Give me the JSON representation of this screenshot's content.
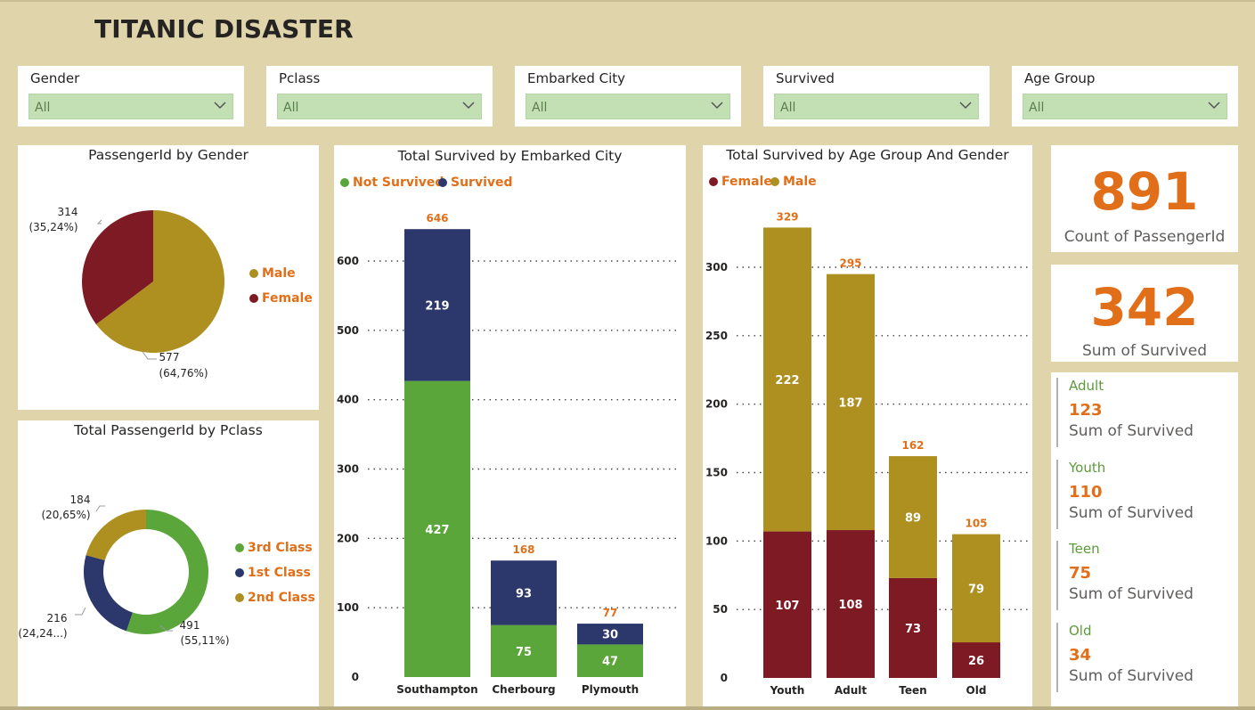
{
  "title": "TITANIC DISASTER",
  "colors": {
    "background": "#e0d4aa",
    "male": "#ad9020",
    "female": "#7d1a24",
    "not_survived": "#5aa63a",
    "survived": "#2c376b",
    "class3": "#5aa63a",
    "class1": "#2c376b",
    "class2": "#ad9020",
    "accent": "#e16f19"
  },
  "slicers": [
    {
      "label": "Gender",
      "value": "All"
    },
    {
      "label": "Pclass",
      "value": "All"
    },
    {
      "label": "Embarked City",
      "value": "All"
    },
    {
      "label": "Survived",
      "value": "All"
    },
    {
      "label": "Age Group",
      "value": "All"
    }
  ],
  "gender_chart": {
    "title": "PassengerId by Gender",
    "legend": [
      "Male",
      "Female"
    ],
    "labels": {
      "male_count": "577",
      "male_pct": "(64,76%)",
      "female_count": "314",
      "female_pct": "(35,24%)"
    }
  },
  "pclass_chart": {
    "title": "Total PassengerId by Pclass",
    "legend": [
      "3rd Class",
      "1st Class",
      "2nd Class"
    ],
    "labels": {
      "c3_count": "491",
      "c3_pct": "(55,11%)",
      "c1_count": "216",
      "c1_pct": "(24,24...)",
      "c2_count": "184",
      "c2_pct": "(20,65%)"
    }
  },
  "embarked_chart": {
    "title": "Total Survived by Embarked City",
    "legend": [
      "Not Survived",
      "Survived"
    ]
  },
  "age_chart": {
    "title": "Total Survived by Age Group And Gender",
    "legend": [
      "Female",
      "Male"
    ]
  },
  "kpis": {
    "count": {
      "value": "891",
      "label": "Count of PassengerId"
    },
    "survived": {
      "value": "342",
      "label": "Sum of Survived"
    }
  },
  "multirow": [
    {
      "title": "Adult",
      "value": "123",
      "label": "Sum of Survived"
    },
    {
      "title": "Youth",
      "value": "110",
      "label": "Sum of Survived"
    },
    {
      "title": "Teen",
      "value": "75",
      "label": "Sum of Survived"
    },
    {
      "title": "Old",
      "value": "34",
      "label": "Sum of Survived"
    }
  ],
  "chart_data": [
    {
      "type": "pie",
      "title": "PassengerId by Gender",
      "categories": [
        "Male",
        "Female"
      ],
      "values": [
        577,
        314
      ],
      "percent_labels": [
        "(64,76%)",
        "(35,24%)"
      ],
      "legend_position": "right"
    },
    {
      "type": "pie",
      "subtype": "donut",
      "title": "Total PassengerId by Pclass",
      "categories": [
        "3rd Class",
        "1st Class",
        "2nd Class"
      ],
      "values": [
        491,
        216,
        184
      ],
      "percent_labels": [
        "(55,11%)",
        "(24,24...)",
        "(20,65%)"
      ],
      "legend_position": "right"
    },
    {
      "type": "bar",
      "stacked": true,
      "title": "Total Survived by Embarked City",
      "categories": [
        "Southampton",
        "Cherbourg",
        "Plymouth"
      ],
      "series": [
        {
          "name": "Not Survived",
          "values": [
            427,
            75,
            47
          ]
        },
        {
          "name": "Survived",
          "values": [
            219,
            93,
            30
          ]
        }
      ],
      "totals": [
        646,
        168,
        77
      ],
      "yticks": [
        0,
        100,
        200,
        300,
        400,
        500,
        600
      ],
      "ylim": [
        0,
        680
      ],
      "grid": true,
      "legend_position": "top-left"
    },
    {
      "type": "bar",
      "stacked": true,
      "title": "Total Survived by Age Group And Gender",
      "categories": [
        "Youth",
        "Adult",
        "Teen",
        "Old"
      ],
      "series": [
        {
          "name": "Female",
          "values": [
            107,
            108,
            73,
            26
          ]
        },
        {
          "name": "Male",
          "values": [
            222,
            187,
            89,
            79
          ]
        }
      ],
      "totals": [
        329,
        295,
        162,
        105
      ],
      "yticks": [
        0,
        50,
        100,
        150,
        200,
        250,
        300
      ],
      "ylim": [
        0,
        340
      ],
      "grid": true,
      "legend_position": "top-left"
    }
  ]
}
